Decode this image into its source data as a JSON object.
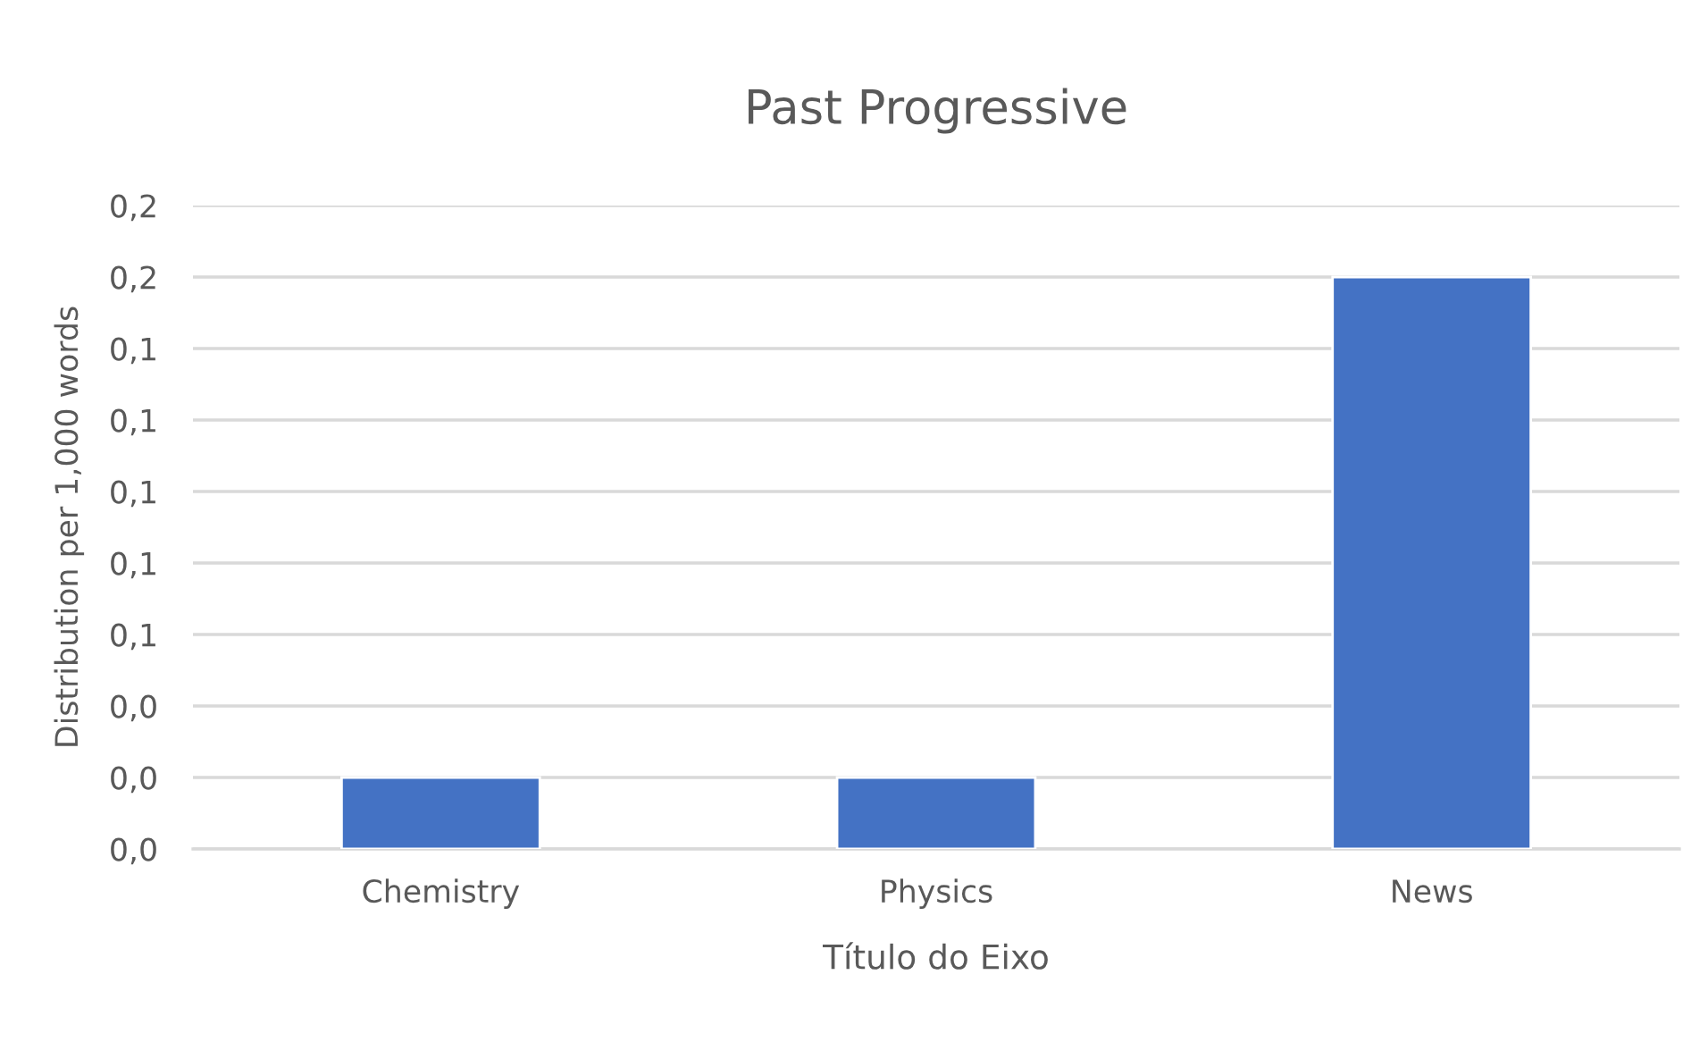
{
  "chart_data": {
    "type": "bar",
    "title": "Past Progressive",
    "xlabel": "Título do Eixo",
    "ylabel": "Distribution per 1,000 words",
    "categories": [
      "Chemistry",
      "Physics",
      "News"
    ],
    "values": [
      0.02,
      0.02,
      0.16
    ],
    "color": "#4472c4",
    "ylim": [
      0,
      0.18
    ],
    "yticks": [
      {
        "value": 0,
        "label": "0,0"
      },
      {
        "value": 0.02,
        "label": "0,0"
      },
      {
        "value": 0.04,
        "label": "0,0"
      },
      {
        "value": 0.06,
        "label": "0,1"
      },
      {
        "value": 0.08,
        "label": "0,1"
      },
      {
        "value": 0.1,
        "label": "0,1"
      },
      {
        "value": 0.12,
        "label": "0,1"
      },
      {
        "value": 0.14,
        "label": "0,1"
      },
      {
        "value": 0.16,
        "label": "0,2"
      },
      {
        "value": 0.18,
        "label": "0,2"
      }
    ],
    "grid": "y"
  }
}
